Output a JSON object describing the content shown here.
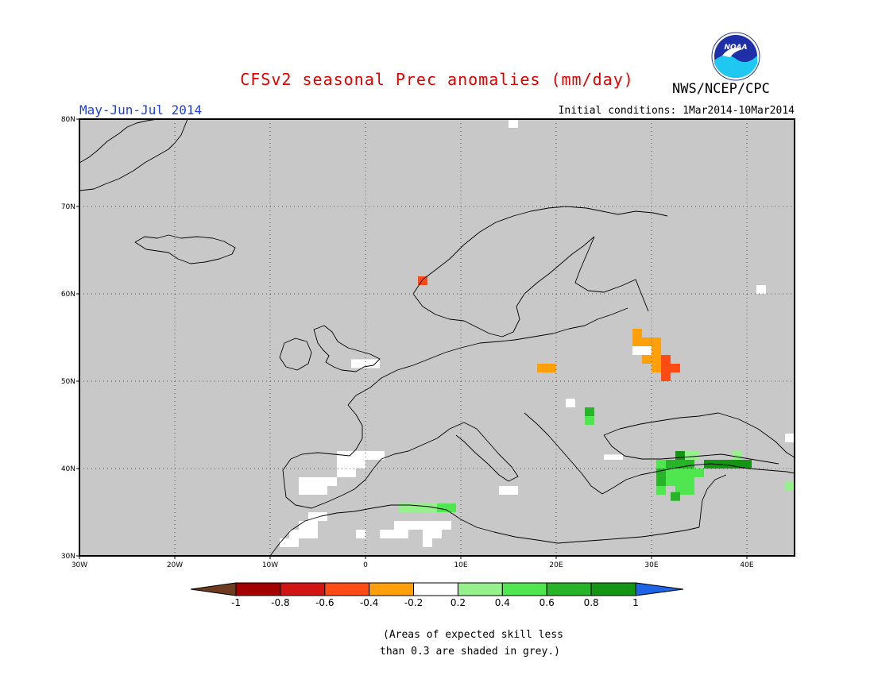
{
  "header": {
    "title": "CFSv2 seasonal Prec anomalies (mm/day)",
    "org": "NWS/NCEP/CPC",
    "logo_text": "NOAA",
    "season": "May-Jun-Jul 2014",
    "initial_conditions": "Initial conditions: 1Mar2014-10Mar2014"
  },
  "map": {
    "lon_range": [
      -30,
      45
    ],
    "lat_range": [
      30,
      80
    ],
    "background_color": "#c8c8c8",
    "gridlines": "dotted",
    "lat_ticks": [
      {
        "value": 80,
        "label": "80N"
      },
      {
        "value": 70,
        "label": "70N"
      },
      {
        "value": 60,
        "label": "60N"
      },
      {
        "value": 50,
        "label": "50N"
      },
      {
        "value": 40,
        "label": "40N"
      },
      {
        "value": 30,
        "label": "30N"
      }
    ],
    "lon_ticks": [
      {
        "value": -30,
        "label": "30W"
      },
      {
        "value": -20,
        "label": "20W"
      },
      {
        "value": -10,
        "label": "10W"
      },
      {
        "value": 0,
        "label": "0"
      },
      {
        "value": 10,
        "label": "10E"
      },
      {
        "value": 20,
        "label": "20E"
      },
      {
        "value": 30,
        "label": "30E"
      },
      {
        "value": 40,
        "label": "40E"
      }
    ],
    "anomaly_cells": [
      {
        "lon": 5.5,
        "lat": 61.0,
        "w": 1.0,
        "h": 1.0,
        "category": "-0.6 to -0.4"
      },
      {
        "lon": 28.0,
        "lat": 55.0,
        "w": 1.0,
        "h": 1.0,
        "category": "-0.4 to -0.2"
      },
      {
        "lon": 28.0,
        "lat": 54.0,
        "w": 3.0,
        "h": 1.0,
        "category": "-0.4 to -0.2"
      },
      {
        "lon": 30.0,
        "lat": 53.0,
        "w": 1.0,
        "h": 1.0,
        "category": "-0.4 to -0.2"
      },
      {
        "lon": 29.0,
        "lat": 52.0,
        "w": 2.0,
        "h": 1.0,
        "category": "-0.4 to -0.2"
      },
      {
        "lon": 30.0,
        "lat": 51.0,
        "w": 1.0,
        "h": 1.0,
        "category": "-0.4 to -0.2"
      },
      {
        "lon": 18.0,
        "lat": 51.0,
        "w": 2.0,
        "h": 1.0,
        "category": "-0.4 to -0.2"
      },
      {
        "lon": 31.0,
        "lat": 52.0,
        "w": 1.0,
        "h": 1.0,
        "category": "-0.6 to -0.4"
      },
      {
        "lon": 31.0,
        "lat": 51.0,
        "w": 2.0,
        "h": 1.0,
        "category": "-0.6 to -0.4"
      },
      {
        "lon": 31.0,
        "lat": 50.0,
        "w": 1.0,
        "h": 1.0,
        "category": "-0.6 to -0.4"
      },
      {
        "lon": 28.0,
        "lat": 53.0,
        "w": 2.0,
        "h": 1.0,
        "category": "-0.2 to 0.2"
      },
      {
        "lon": 41.0,
        "lat": 60.0,
        "w": 1.0,
        "h": 1.0,
        "category": "-0.2 to 0.2"
      },
      {
        "lon": 44.0,
        "lat": 43.0,
        "w": 1.0,
        "h": 1.0,
        "category": "-0.2 to 0.2"
      },
      {
        "lon": -1.5,
        "lat": 51.5,
        "w": 3.0,
        "h": 1.0,
        "category": "-0.2 to 0.2"
      },
      {
        "lon": 21.0,
        "lat": 47.0,
        "w": 1.0,
        "h": 1.0,
        "category": "-0.2 to 0.2"
      },
      {
        "lon": -3.0,
        "lat": 41.0,
        "w": 5.0,
        "h": 1.0,
        "category": "-0.2 to 0.2"
      },
      {
        "lon": -3.0,
        "lat": 40.0,
        "w": 3.0,
        "h": 1.0,
        "category": "-0.2 to 0.2"
      },
      {
        "lon": -3.0,
        "lat": 39.0,
        "w": 2.0,
        "h": 1.0,
        "category": "-0.2 to 0.2"
      },
      {
        "lon": -7.0,
        "lat": 38.0,
        "w": 4.0,
        "h": 1.0,
        "category": "-0.2 to 0.2"
      },
      {
        "lon": -7.0,
        "lat": 37.0,
        "w": 3.0,
        "h": 1.0,
        "category": "-0.2 to 0.2"
      },
      {
        "lon": -6.0,
        "lat": 34.0,
        "w": 2.0,
        "h": 1.0,
        "category": "-0.2 to 0.2"
      },
      {
        "lon": -7.0,
        "lat": 33.0,
        "w": 2.0,
        "h": 1.0,
        "category": "-0.2 to 0.2"
      },
      {
        "lon": -8.0,
        "lat": 32.0,
        "w": 3.0,
        "h": 1.0,
        "category": "-0.2 to 0.2"
      },
      {
        "lon": -9.0,
        "lat": 31.0,
        "w": 2.0,
        "h": 1.0,
        "category": "-0.2 to 0.2"
      },
      {
        "lon": -1.0,
        "lat": 32.0,
        "w": 1.0,
        "h": 1.0,
        "category": "-0.2 to 0.2"
      },
      {
        "lon": 3.0,
        "lat": 33.0,
        "w": 6.0,
        "h": 1.0,
        "category": "-0.2 to 0.2"
      },
      {
        "lon": 1.5,
        "lat": 32.0,
        "w": 3.0,
        "h": 1.0,
        "category": "-0.2 to 0.2"
      },
      {
        "lon": 6.0,
        "lat": 32.0,
        "w": 2.0,
        "h": 1.0,
        "category": "-0.2 to 0.2"
      },
      {
        "lon": 6.0,
        "lat": 31.0,
        "w": 1.0,
        "h": 1.0,
        "category": "-0.2 to 0.2"
      },
      {
        "lon": 14.0,
        "lat": 37.0,
        "w": 2.0,
        "h": 1.0,
        "category": "-0.2 to 0.2"
      },
      {
        "lon": 25.0,
        "lat": 41.0,
        "w": 2.0,
        "h": 0.6,
        "category": "-0.2 to 0.2"
      },
      {
        "lon": 15.0,
        "lat": 79.0,
        "w": 1.0,
        "h": 1.0,
        "category": "-0.2 to 0.2"
      },
      {
        "lon": 3.5,
        "lat": 35.0,
        "w": 4.0,
        "h": 1.0,
        "category": "0.2 to 0.4"
      },
      {
        "lon": 33.0,
        "lat": 41.0,
        "w": 2.0,
        "h": 1.0,
        "category": "0.2 to 0.4"
      },
      {
        "lon": 38.5,
        "lat": 41.0,
        "w": 1.0,
        "h": 1.0,
        "category": "0.2 to 0.4"
      },
      {
        "lon": 44.0,
        "lat": 37.5,
        "w": 1.0,
        "h": 1.0,
        "category": "0.2 to 0.4"
      },
      {
        "lon": 7.5,
        "lat": 35.0,
        "w": 2.0,
        "h": 1.0,
        "category": "0.4 to 0.6"
      },
      {
        "lon": 23.0,
        "lat": 45.0,
        "w": 1.0,
        "h": 1.0,
        "category": "0.4 to 0.6"
      },
      {
        "lon": 30.5,
        "lat": 40.0,
        "w": 1.0,
        "h": 1.0,
        "category": "0.4 to 0.6"
      },
      {
        "lon": 31.5,
        "lat": 39.0,
        "w": 4.0,
        "h": 1.0,
        "category": "0.4 to 0.6"
      },
      {
        "lon": 31.5,
        "lat": 38.0,
        "w": 3.0,
        "h": 1.0,
        "category": "0.4 to 0.6"
      },
      {
        "lon": 30.5,
        "lat": 37.0,
        "w": 1.0,
        "h": 1.0,
        "category": "0.4 to 0.6"
      },
      {
        "lon": 32.5,
        "lat": 37.0,
        "w": 2.0,
        "h": 1.0,
        "category": "0.4 to 0.6"
      },
      {
        "lon": 23.0,
        "lat": 46.0,
        "w": 1.0,
        "h": 1.0,
        "category": "0.6 to 0.8"
      },
      {
        "lon": 31.5,
        "lat": 40.0,
        "w": 3.0,
        "h": 1.0,
        "category": "0.6 to 0.8"
      },
      {
        "lon": 30.5,
        "lat": 39.0,
        "w": 1.0,
        "h": 1.0,
        "category": "0.6 to 0.8"
      },
      {
        "lon": 30.5,
        "lat": 38.0,
        "w": 1.0,
        "h": 1.0,
        "category": "0.6 to 0.8"
      },
      {
        "lon": 32.0,
        "lat": 36.3,
        "w": 1.0,
        "h": 1.0,
        "category": "0.6 to 0.8"
      },
      {
        "lon": 32.5,
        "lat": 41.0,
        "w": 1.0,
        "h": 1.0,
        "category": "0.8 to 1"
      },
      {
        "lon": 35.5,
        "lat": 40.0,
        "w": 5.0,
        "h": 1.0,
        "category": "0.8 to 1"
      }
    ]
  },
  "colorbar": {
    "ticks": [
      "-1",
      "-0.8",
      "-0.6",
      "-0.4",
      "-0.2",
      "0.2",
      "0.4",
      "0.6",
      "0.8",
      "1"
    ],
    "low_arrow_color": "#6e3a20",
    "high_arrow_color": "#1e64e6",
    "bins": [
      {
        "category": "-1 to -0.8",
        "color": "#a50000"
      },
      {
        "category": "-0.8 to -0.6",
        "color": "#d21414"
      },
      {
        "category": "-0.6 to -0.4",
        "color": "#ff4b14"
      },
      {
        "category": "-0.4 to -0.2",
        "color": "#ffa00a"
      },
      {
        "category": "-0.2 to 0.2",
        "color": "#ffffff"
      },
      {
        "category": "0.2 to 0.4",
        "color": "#96f08c"
      },
      {
        "category": "0.4 to 0.6",
        "color": "#50e650"
      },
      {
        "category": "0.6 to 0.8",
        "color": "#28b428"
      },
      {
        "category": "0.8 to 1",
        "color": "#149614"
      }
    ]
  },
  "note": {
    "line1": "(Areas of expected skill less",
    "line2": "than 0.3 are shaded in grey.)"
  }
}
